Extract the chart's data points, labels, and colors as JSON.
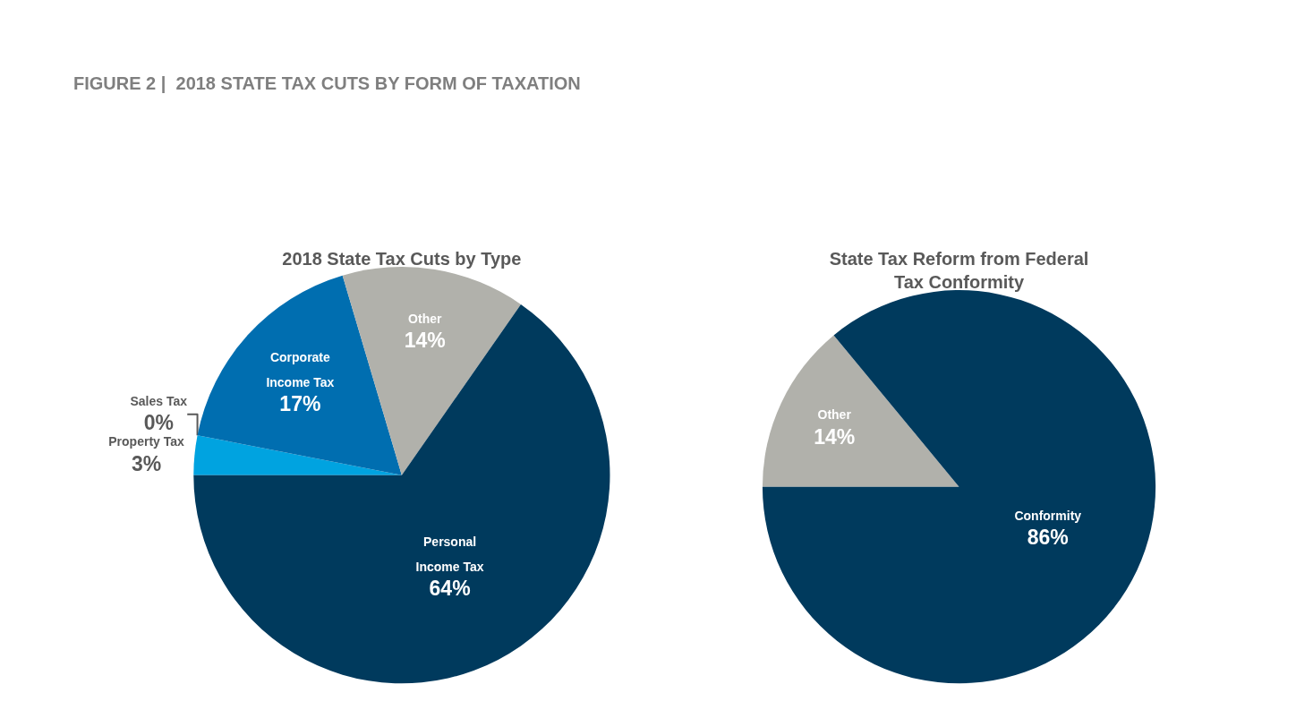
{
  "chart_data": [
    {
      "type": "pie",
      "title": "2018 State Tax Cuts by Type",
      "annotations": [
        "FIGURE 2 |  2018 STATE TAX CUTS BY FORM OF TAXATION"
      ],
      "categories": [
        "Property Tax",
        "Sales Tax",
        "Corporate Income Tax",
        "Other",
        "Personal Income Tax"
      ],
      "values": [
        3,
        0,
        17,
        14,
        64
      ],
      "value_labels": [
        "3%",
        "0%",
        "17%",
        "14%",
        "64%"
      ],
      "colors": [
        "#00a3e0",
        "#4f8fc9",
        "#006eb0",
        "#b1b1ab",
        "#003a5d"
      ]
    },
    {
      "type": "pie",
      "title": "State Tax Reform from Federal Tax Conformity",
      "categories": [
        "Other",
        "Conformity"
      ],
      "values": [
        14,
        86
      ],
      "value_labels": [
        "14%",
        "86%"
      ],
      "colors": [
        "#b1b1ab",
        "#003a5d"
      ]
    }
  ]
}
